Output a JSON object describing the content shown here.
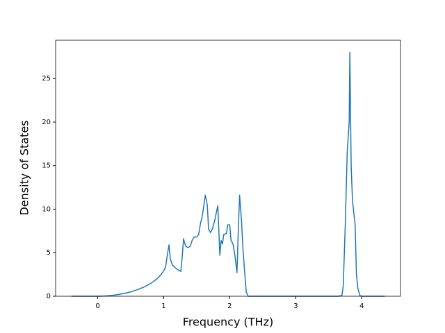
{
  "chart_data": {
    "type": "line",
    "x_label": "Frequency (THz)",
    "y_label": "Density of States",
    "x": [
      -0.4,
      -0.1,
      0,
      0.1,
      0.2,
      0.3,
      0.4,
      0.5,
      0.6,
      0.7,
      0.8,
      0.9,
      0.95,
      1.0,
      1.03,
      1.05,
      1.08,
      1.1,
      1.13,
      1.17,
      1.22,
      1.26,
      1.28,
      1.3,
      1.33,
      1.36,
      1.4,
      1.43,
      1.46,
      1.5,
      1.53,
      1.56,
      1.58,
      1.6,
      1.63,
      1.66,
      1.68,
      1.71,
      1.74,
      1.77,
      1.8,
      1.82,
      1.85,
      1.87,
      1.89,
      1.91,
      1.95,
      1.97,
      2.0,
      2.02,
      2.05,
      2.08,
      2.11,
      2.13,
      2.15,
      2.18,
      2.2,
      2.22,
      2.25,
      2.28,
      3.0,
      3.65,
      3.7,
      3.72,
      3.75,
      3.78,
      3.81,
      3.82,
      3.84,
      3.86,
      3.9,
      3.92,
      3.94,
      3.97,
      4.0,
      4.35
    ],
    "series": [
      {
        "color": "#1f77b4",
        "values": [
          0,
          0,
          0,
          0.02,
          0.08,
          0.18,
          0.32,
          0.5,
          0.75,
          1.05,
          1.45,
          2.0,
          2.4,
          2.9,
          3.4,
          4.5,
          5.9,
          4.3,
          3.6,
          3.3,
          3.0,
          2.85,
          4.5,
          6.6,
          5.8,
          5.6,
          5.7,
          6.4,
          6.8,
          6.8,
          7.1,
          8.5,
          9.0,
          10.0,
          11.6,
          10.5,
          7.7,
          7.3,
          7.8,
          8.6,
          9.7,
          10.4,
          4.7,
          6.4,
          6.0,
          7.1,
          7.2,
          8.2,
          8.2,
          6.4,
          6.0,
          4.6,
          2.7,
          7.5,
          11.6,
          8.5,
          5.5,
          3.4,
          0.5,
          0,
          0,
          0,
          0.1,
          1.2,
          8,
          16.5,
          20,
          28,
          15,
          11,
          8.2,
          2.5,
          1,
          0.1,
          0,
          0
        ]
      }
    ],
    "xlim": [
      -0.6375,
      4.5875
    ],
    "ylim": [
      0,
      29.4
    ],
    "xticks": [
      0,
      1,
      2,
      3,
      4
    ],
    "yticks": [
      0,
      5,
      10,
      15,
      20,
      25
    ]
  }
}
